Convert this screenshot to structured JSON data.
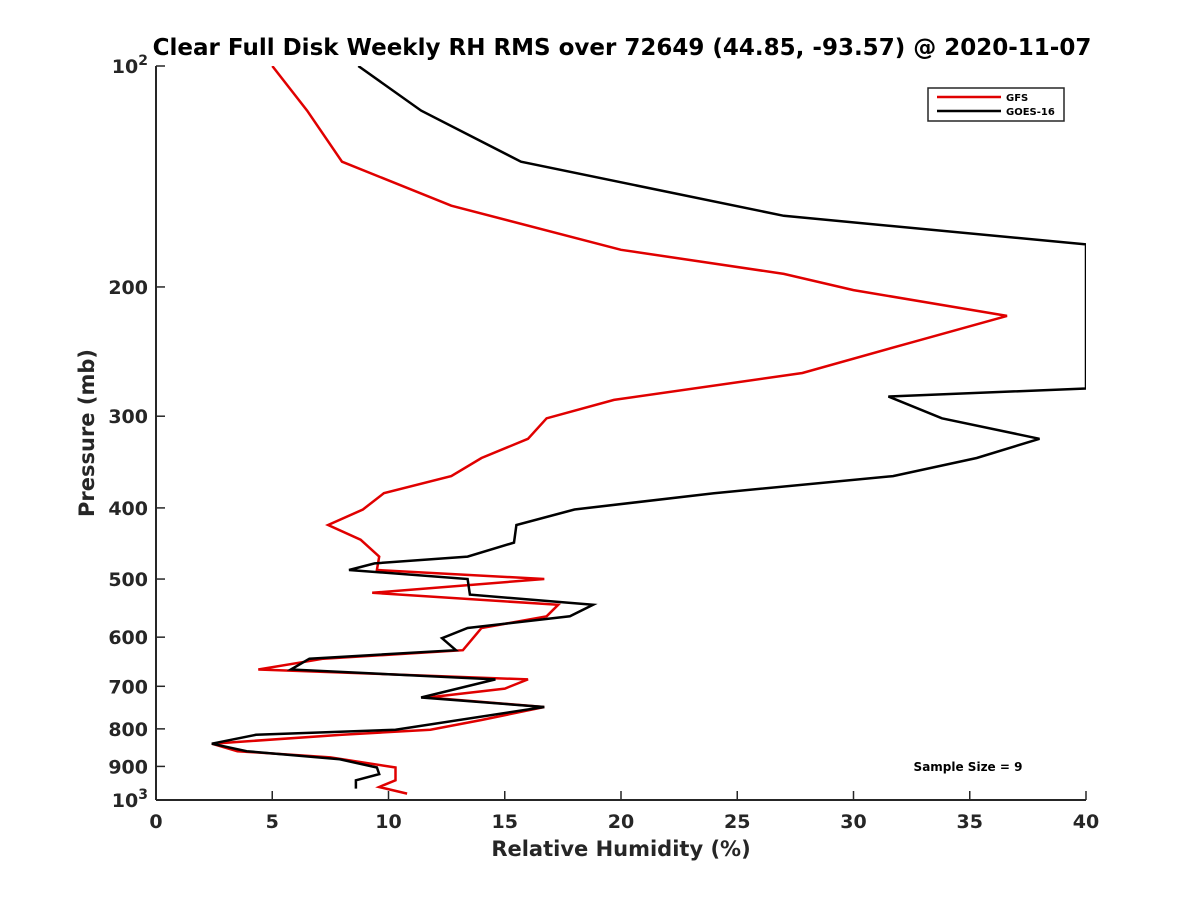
{
  "chart_data": {
    "type": "line",
    "title": "Clear Full Disk Weekly RH RMS over 72649 (44.85, -93.57) @ 2020-11-07",
    "xlabel": "Relative Humidity (%)",
    "ylabel": "Pressure (mb)",
    "xlim": [
      0,
      40
    ],
    "ylim": [
      100,
      1000
    ],
    "y_scale": "log",
    "y_reversed": true,
    "x_ticks": [
      0,
      5,
      10,
      15,
      20,
      25,
      30,
      35,
      40
    ],
    "x_tick_labels": [
      "0",
      "5",
      "10",
      "15",
      "20",
      "25",
      "30",
      "35",
      "40"
    ],
    "y_ticks": [
      100,
      200,
      300,
      400,
      500,
      600,
      700,
      800,
      900,
      1000
    ],
    "y_tick_labels": [
      {
        "base": "10",
        "exp": "2"
      },
      {
        "base": "200",
        "exp": ""
      },
      {
        "base": "300",
        "exp": ""
      },
      {
        "base": "400",
        "exp": ""
      },
      {
        "base": "500",
        "exp": ""
      },
      {
        "base": "600",
        "exp": ""
      },
      {
        "base": "700",
        "exp": ""
      },
      {
        "base": "800",
        "exp": ""
      },
      {
        "base": "900",
        "exp": ""
      },
      {
        "base": "10",
        "exp": "3"
      }
    ],
    "grid": false,
    "legend_position": "top-right",
    "annotation": "Sample Size = 9",
    "series": [
      {
        "name": "GFS",
        "color": "#e00000",
        "points": [
          [
            5.0,
            100
          ],
          [
            6.5,
            115
          ],
          [
            8.0,
            135
          ],
          [
            12.7,
            155
          ],
          [
            20,
            178
          ],
          [
            27,
            192
          ],
          [
            30,
            202
          ],
          [
            36.6,
            219
          ],
          [
            32.5,
            238
          ],
          [
            27.8,
            262
          ],
          [
            19.7,
            285
          ],
          [
            16.8,
            302
          ],
          [
            16.0,
            322
          ],
          [
            14.0,
            342
          ],
          [
            12.7,
            362
          ],
          [
            9.8,
            382
          ],
          [
            8.9,
            402
          ],
          [
            7.4,
            422
          ],
          [
            8.8,
            442
          ],
          [
            9.6,
            466
          ],
          [
            9.5,
            486
          ],
          [
            16.7,
            500
          ],
          [
            9.3,
            522
          ],
          [
            17.3,
            542
          ],
          [
            16.8,
            562
          ],
          [
            14.0,
            583
          ],
          [
            13.2,
            625
          ],
          [
            7.2,
            642
          ],
          [
            4.4,
            664
          ],
          [
            16.0,
            685
          ],
          [
            15.0,
            705
          ],
          [
            11.7,
            725
          ],
          [
            16.7,
            747
          ],
          [
            14.0,
            778
          ],
          [
            11.8,
            802
          ],
          [
            8.0,
            815
          ],
          [
            2.4,
            838
          ],
          [
            3.5,
            858
          ],
          [
            7.5,
            875
          ],
          [
            10.3,
            903
          ],
          [
            10.3,
            940
          ],
          [
            9.6,
            960
          ],
          [
            10.8,
            980
          ]
        ]
      },
      {
        "name": "GOES-16",
        "color": "#000000",
        "points": [
          [
            8.7,
            100
          ],
          [
            11.4,
            115
          ],
          [
            15.7,
            135
          ],
          [
            27,
            160
          ],
          [
            40,
            175
          ],
          [
            40,
            275
          ],
          [
            31.5,
            282
          ],
          [
            33.8,
            302
          ],
          [
            38.0,
            322
          ],
          [
            35.3,
            342
          ],
          [
            31.7,
            362
          ],
          [
            24.0,
            382
          ],
          [
            18.0,
            402
          ],
          [
            15.5,
            422
          ],
          [
            15.4,
            446
          ],
          [
            13.4,
            466
          ],
          [
            9.4,
            476
          ],
          [
            8.3,
            486
          ],
          [
            13.4,
            500
          ],
          [
            13.5,
            525
          ],
          [
            18.8,
            542
          ],
          [
            17.8,
            562
          ],
          [
            13.4,
            583
          ],
          [
            12.3,
            602
          ],
          [
            12.9,
            625
          ],
          [
            6.6,
            642
          ],
          [
            5.8,
            664
          ],
          [
            14.6,
            685
          ],
          [
            11.4,
            725
          ],
          [
            16.7,
            747
          ],
          [
            10.3,
            802
          ],
          [
            4.3,
            815
          ],
          [
            2.4,
            838
          ],
          [
            3.9,
            858
          ],
          [
            7.9,
            880
          ],
          [
            9.5,
            903
          ],
          [
            9.6,
            922
          ],
          [
            8.6,
            940
          ],
          [
            8.6,
            965
          ]
        ]
      }
    ]
  }
}
